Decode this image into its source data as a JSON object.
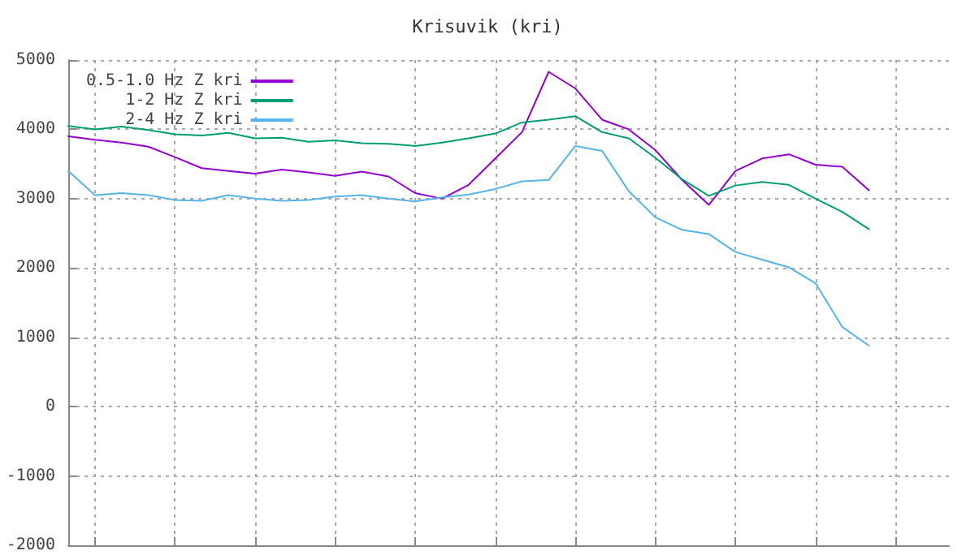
{
  "chart_data": {
    "type": "line",
    "title": "Krisuvik (kri)",
    "categories": [
      null,
      null,
      null,
      null,
      null,
      null,
      null,
      null,
      null,
      null,
      null,
      null,
      null,
      null,
      null,
      null,
      null,
      null,
      null,
      null,
      null,
      null,
      null,
      null,
      null,
      null,
      null,
      null,
      null,
      null,
      null,
      null,
      null,
      null
    ],
    "series": [
      {
        "name": "0.5-1.0 Hz Z kri",
        "color": "#9400d3",
        "values": [
          3900,
          3850,
          3810,
          3750,
          3600,
          3440,
          3400,
          3360,
          3420,
          3380,
          3330,
          3390,
          3320,
          3080,
          3000,
          3200,
          3580,
          3960,
          4830,
          4590,
          4140,
          4000,
          3700,
          3270,
          2910,
          3400,
          3580,
          3640,
          3490,
          3460,
          3120,
          null,
          null,
          null
        ]
      },
      {
        "name": "1-2 Hz Z kri",
        "color": "#009e73",
        "values": [
          4050,
          4000,
          4040,
          3990,
          3930,
          3910,
          3950,
          3870,
          3880,
          3820,
          3840,
          3800,
          3790,
          3760,
          3810,
          3870,
          3940,
          4100,
          4140,
          4190,
          3960,
          3870,
          3590,
          3280,
          3040,
          3190,
          3240,
          3200,
          3000,
          2810,
          2560,
          null,
          null,
          null
        ]
      },
      {
        "name": "2-4 Hz Z kri",
        "color": "#56b4e9",
        "values": [
          3400,
          3050,
          3080,
          3050,
          2980,
          2970,
          3050,
          3000,
          2970,
          2980,
          3030,
          3050,
          3000,
          2960,
          3020,
          3060,
          3140,
          3250,
          3270,
          3760,
          3690,
          3110,
          2730,
          2550,
          2490,
          2230,
          2120,
          2010,
          1780,
          1150,
          880,
          null,
          null,
          null
        ]
      }
    ],
    "ylim": [
      -2000,
      5000
    ],
    "yticks": [
      -2000,
      -1000,
      0,
      1000,
      2000,
      3000,
      4000,
      5000
    ],
    "tick_labels": "y",
    "grid": true,
    "legend": "top left",
    "marker": "none",
    "line_style": "solid"
  }
}
